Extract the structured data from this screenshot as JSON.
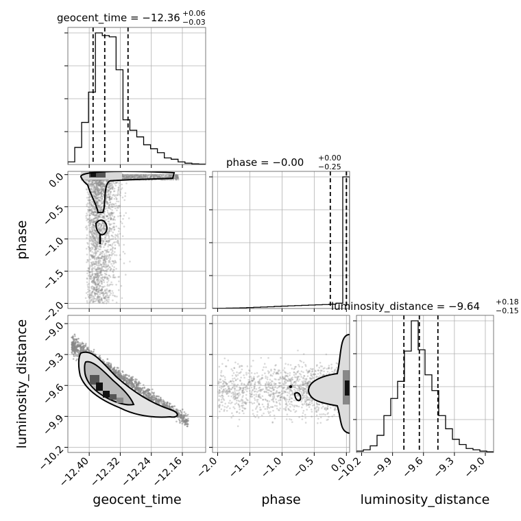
{
  "chart_data": {
    "type": "corner",
    "parameters": [
      "geocent_time",
      "phase",
      "luminosity_distance"
    ],
    "titles": [
      {
        "param": "geocent_time",
        "label": "geocent_time = −12.36",
        "plus": "+0.06",
        "minus": "−0.03"
      },
      {
        "param": "phase",
        "label": "phase = −0.00",
        "plus": "+0.00",
        "minus": "−0.25"
      },
      {
        "param": "luminosity_distance",
        "label": "luminosity_distance = −9.64",
        "plus": "+0.18",
        "minus": "−0.15"
      }
    ],
    "axis_labels": {
      "geocent_time": "geocent_time",
      "phase": "phase",
      "luminosity_distance": "luminosity_distance"
    },
    "ranges": {
      "geocent_time": [
        -12.455,
        -12.1
      ],
      "phase": [
        -2.08,
        0.05
      ],
      "luminosity_distance": [
        -10.25,
        -8.92
      ]
    },
    "ticks": {
      "geocent_time": {
        "values": [
          -12.4,
          -12.32,
          -12.24,
          -12.16
        ],
        "labels": [
          "−12.40",
          "−12.32",
          "−12.24",
          "−12.16"
        ]
      },
      "phase_x": {
        "values": [
          -2.0,
          -1.5,
          -1.0,
          -0.5,
          0.0
        ],
        "labels": [
          "−2.0",
          "−1.5",
          "−1.0",
          "−0.5",
          "0.0"
        ]
      },
      "phase_y": {
        "values": [
          0.0,
          -0.5,
          -1.0,
          -1.5,
          -2.0
        ],
        "labels": [
          "0.0",
          "−0.5",
          "−1.0",
          "−1.5",
          "−2.0"
        ]
      },
      "luminosity_distance": {
        "values": [
          -10.2,
          -9.9,
          -9.6,
          -9.3,
          -9.0
        ],
        "labels": [
          "−10.2",
          "−9.9",
          "−9.6",
          "−9.3",
          "−9.0"
        ]
      }
    },
    "quantiles": {
      "geocent_time": [
        -12.39,
        -12.36,
        -12.3
      ],
      "phase": [
        -0.25,
        0.0,
        0.0
      ],
      "luminosity_distance": [
        -9.79,
        -9.64,
        -9.46
      ]
    },
    "histograms": {
      "geocent_time": {
        "edges": [
          -12.455,
          -12.4373,
          -12.4195,
          -12.4018,
          -12.384,
          -12.3663,
          -12.3485,
          -12.3308,
          -12.313,
          -12.2953,
          -12.2775,
          -12.2598,
          -12.242,
          -12.2243,
          -12.2065,
          -12.1888,
          -12.171,
          -12.1533,
          -12.1355,
          -12.1178,
          -12.1
        ],
        "counts": [
          0.02,
          0.13,
          0.32,
          0.55,
          1.0,
          0.98,
          0.97,
          0.72,
          0.34,
          0.26,
          0.21,
          0.15,
          0.12,
          0.09,
          0.05,
          0.04,
          0.02,
          0.01,
          0.005,
          0.003
        ]
      },
      "phase": {
        "edges": [
          -2.08,
          -1.9735,
          -1.867,
          -1.7605,
          -1.654,
          -1.5475,
          -1.441,
          -1.3345,
          -1.228,
          -1.1215,
          -1.015,
          -0.9085,
          -0.802,
          -0.6955,
          -0.589,
          -0.4825,
          -0.376,
          -0.2695,
          -0.163,
          -0.0565,
          0.05
        ],
        "counts": [
          0.001,
          0.002,
          0.003,
          0.004,
          0.005,
          0.007,
          0.009,
          0.011,
          0.013,
          0.016,
          0.018,
          0.02,
          0.022,
          0.024,
          0.026,
          0.028,
          0.03,
          0.033,
          0.04,
          1.0
        ]
      },
      "luminosity_distance": {
        "edges": [
          -10.25,
          -10.1835,
          -10.117,
          -10.0505,
          -9.984,
          -9.9175,
          -9.851,
          -9.7845,
          -9.718,
          -9.6515,
          -9.585,
          -9.5185,
          -9.452,
          -9.3855,
          -9.319,
          -9.2525,
          -9.186,
          -9.1195,
          -9.053,
          -8.9865,
          -8.92
        ],
        "counts": [
          0.01,
          0.02,
          0.05,
          0.13,
          0.28,
          0.41,
          0.54,
          0.77,
          1.0,
          0.78,
          0.59,
          0.47,
          0.28,
          0.18,
          0.1,
          0.06,
          0.03,
          0.02,
          0.01,
          0.005
        ]
      }
    },
    "joint_densities": [
      {
        "x": "geocent_time",
        "y": "phase",
        "shape": "posterior concentrated near phase 0 at geocent_time -12.40 to -12.36, with a tail toward negative phase"
      },
      {
        "x": "geocent_time",
        "y": "luminosity_distance",
        "shape": "elongated anti-correlated ridge from (-12.42, -9.45) to (-12.24, -9.9)"
      },
      {
        "x": "phase",
        "y": "luminosity_distance",
        "shape": "mass concentrated at phase 0, luminosity_distance about -9.7"
      }
    ],
    "grid": true
  }
}
